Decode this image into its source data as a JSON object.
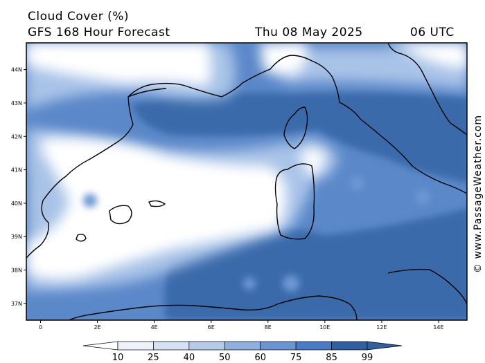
{
  "header": {
    "title": "Cloud Cover (%)",
    "subtitle": "GFS 168 Hour Forecast",
    "date": "Thu 08 May 2025",
    "time": "06 UTC"
  },
  "map": {
    "lat_ticks": [
      "44N",
      "43N",
      "42N",
      "41N",
      "40N",
      "39N",
      "38N",
      "37N"
    ],
    "lon_ticks": [
      "0",
      "2E",
      "4E",
      "6E",
      "8E",
      "10E",
      "12E",
      "14E"
    ],
    "lat_range": [
      36.5,
      44.8
    ],
    "lon_range": [
      -0.5,
      15.0
    ],
    "credit": "© www.PassageWeather.com"
  },
  "colorbar": {
    "levels": [
      "10",
      "25",
      "40",
      "50",
      "60",
      "75",
      "85",
      "99"
    ],
    "colors": [
      "#ffffff",
      "#eef3fb",
      "#d6e2f4",
      "#b6cbea",
      "#8fb0df",
      "#6b95d2",
      "#4a7bc4",
      "#30609f"
    ]
  }
}
